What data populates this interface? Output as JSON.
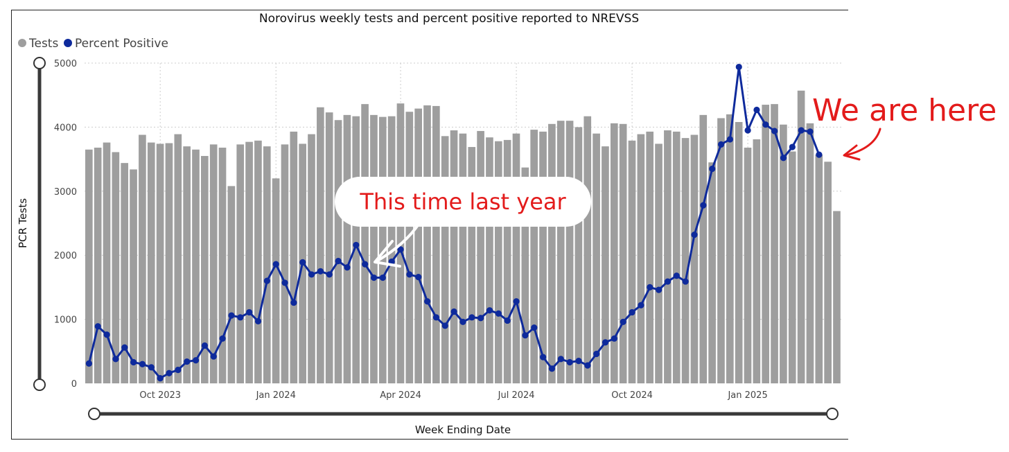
{
  "chart_data": {
    "type": "bar",
    "title": "Norovirus weekly tests and percent positive reported to NREVSS",
    "xlabel": "Week Ending Date",
    "ylabel": "PCR Tests",
    "ylim": [
      0,
      5000
    ],
    "yticks": [
      0,
      1000,
      2000,
      3000,
      4000,
      5000
    ],
    "grid": true,
    "legend_position": "top-left",
    "legend": [
      {
        "label": "Tests",
        "color": "#9e9e9e"
      },
      {
        "label": "Percent Positive",
        "color": "#0e2a9c"
      }
    ],
    "xtick_labels": [
      {
        "label": "Oct 2023",
        "week_index": 8
      },
      {
        "label": "Jan 2024",
        "week_index": 21
      },
      {
        "label": "Apr 2024",
        "week_index": 35
      },
      {
        "label": "Jul 2024",
        "week_index": 48
      },
      {
        "label": "Oct 2024",
        "week_index": 61
      },
      {
        "label": "Jan 2025",
        "week_index": 74
      }
    ],
    "series": [
      {
        "name": "Tests",
        "type": "bar",
        "color": "#9e9e9e",
        "values": [
          3650,
          3680,
          3760,
          3610,
          3440,
          3340,
          3880,
          3760,
          3740,
          3750,
          3890,
          3700,
          3650,
          3550,
          3730,
          3680,
          3080,
          3730,
          3770,
          3790,
          3700,
          3200,
          3730,
          3930,
          3740,
          3890,
          4310,
          4230,
          4110,
          4190,
          4170,
          4360,
          4190,
          4160,
          4170,
          4370,
          4240,
          4290,
          4340,
          4330,
          3860,
          3950,
          3900,
          3690,
          3940,
          3840,
          3780,
          3800,
          3900,
          3370,
          3960,
          3930,
          4050,
          4100,
          4100,
          4000,
          4170,
          3900,
          3700,
          4060,
          4050,
          3790,
          3890,
          3930,
          3740,
          3950,
          3930,
          3830,
          3880,
          4190,
          3450,
          4140,
          4200,
          4080,
          3680,
          3810,
          4350,
          4360,
          4040,
          3620,
          4570,
          4060,
          3570,
          3460,
          2690
        ]
      },
      {
        "name": "Percent Positive",
        "type": "line",
        "color": "#0e2a9c",
        "values": [
          310,
          890,
          760,
          380,
          560,
          330,
          300,
          250,
          80,
          160,
          210,
          340,
          360,
          590,
          420,
          700,
          1060,
          1030,
          1110,
          970,
          1600,
          1860,
          1570,
          1260,
          1890,
          1700,
          1750,
          1700,
          1910,
          1810,
          2160,
          1860,
          1650,
          1650,
          1900,
          2090,
          1700,
          1660,
          1280,
          1030,
          900,
          1120,
          960,
          1030,
          1020,
          1140,
          1090,
          980,
          1280,
          750,
          870,
          410,
          230,
          380,
          330,
          350,
          280,
          460,
          640,
          700,
          960,
          1110,
          1220,
          1500,
          1460,
          1590,
          1680,
          1590,
          2320,
          2780,
          3350,
          3730,
          3810,
          4940,
          3950,
          4270,
          4040,
          3940,
          3520,
          3690,
          3950,
          3930,
          3570
        ]
      }
    ],
    "annotations": [
      {
        "text": "This time last year"
      },
      {
        "text": "We are here"
      }
    ]
  }
}
